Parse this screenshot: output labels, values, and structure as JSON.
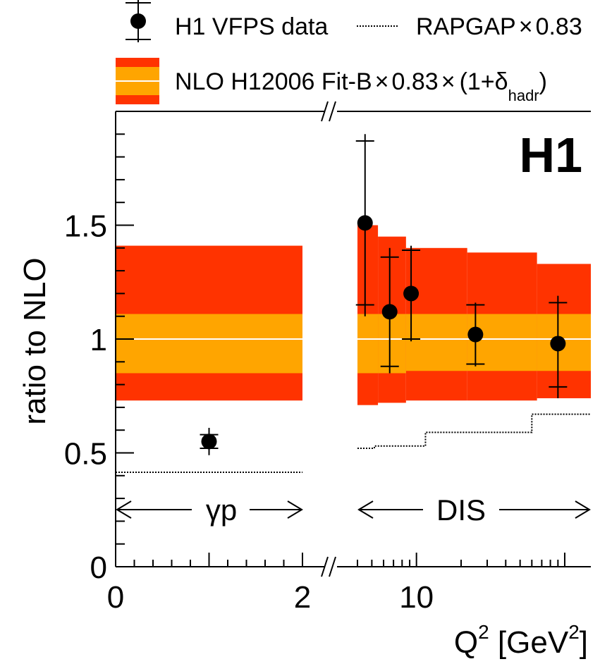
{
  "chart_data": {
    "type": "scatter",
    "experiment_label": "H1",
    "ylabel": "ratio to NLO",
    "xlabel": {
      "main": "Q",
      "sup": "2",
      "unit_open": " [GeV",
      "unit_sup": "2",
      "unit_close": "]"
    },
    "ylim": [
      0,
      2
    ],
    "y_ticks": [
      {
        "value": 0,
        "label": "0"
      },
      {
        "value": 0.5,
        "label": "0.5"
      },
      {
        "value": 1,
        "label": "1"
      },
      {
        "value": 1.5,
        "label": "1.5"
      }
    ],
    "gp_panel": {
      "xlim": [
        0,
        2
      ],
      "x_ticks": [
        {
          "value": 0,
          "label": "0"
        },
        {
          "value": 2,
          "label": "2"
        }
      ],
      "region_label": "γp",
      "band": {
        "x": [
          0,
          2
        ],
        "outer": [
          0.73,
          1.41
        ],
        "inner": [
          0.85,
          1.11
        ],
        "central": 1.0
      },
      "rapgap": [
        {
          "x": [
            0,
            2
          ],
          "y": 0.415
        }
      ],
      "points": [
        {
          "x": 1.0,
          "y": 0.55,
          "stat": [
            0.52,
            0.58
          ],
          "total": [
            0.49,
            0.61
          ]
        }
      ]
    },
    "dis_panel": {
      "xlim": [
        4,
        150
      ],
      "x_scale": "log",
      "x_ticks": [
        {
          "value": 10,
          "label": "10"
        }
      ],
      "region_label": "DIS",
      "bands": [
        {
          "x": [
            4,
            5.5
          ],
          "outer": [
            0.71,
            1.5
          ],
          "inner": [
            0.85,
            1.11
          ]
        },
        {
          "x": [
            5.5,
            8.5
          ],
          "outer": [
            0.72,
            1.45
          ],
          "inner": [
            0.85,
            1.11
          ]
        },
        {
          "x": [
            8.5,
            22
          ],
          "outer": [
            0.73,
            1.4
          ],
          "inner": [
            0.86,
            1.11
          ]
        },
        {
          "x": [
            22,
            65
          ],
          "outer": [
            0.73,
            1.38
          ],
          "inner": [
            0.86,
            1.11
          ]
        },
        {
          "x": [
            65,
            150
          ],
          "outer": [
            0.74,
            1.33
          ],
          "inner": [
            0.86,
            1.11
          ]
        }
      ],
      "central": 1.0,
      "rapgap": [
        {
          "x": [
            4,
            5.2
          ],
          "y": 0.52
        },
        {
          "x": [
            5.2,
            11.5
          ],
          "y": 0.53
        },
        {
          "x": [
            11.5,
            60
          ],
          "y": 0.59
        },
        {
          "x": [
            60,
            150
          ],
          "y": 0.67
        }
      ],
      "points": [
        {
          "x": 4.5,
          "y": 1.51,
          "stat": [
            1.15,
            1.87
          ],
          "total": [
            1.1,
            1.9
          ]
        },
        {
          "x": 6.6,
          "y": 1.12,
          "stat": [
            0.88,
            1.36
          ],
          "total": [
            0.85,
            1.4
          ]
        },
        {
          "x": 9.2,
          "y": 1.2,
          "stat": [
            1.0,
            1.39
          ],
          "total": [
            0.99,
            1.41
          ]
        },
        {
          "x": 25,
          "y": 1.02,
          "stat": [
            0.89,
            1.15
          ],
          "total": [
            0.88,
            1.16
          ]
        },
        {
          "x": 90,
          "y": 0.98,
          "stat": [
            0.79,
            1.16
          ],
          "total": [
            0.74,
            1.19
          ]
        }
      ]
    },
    "legend": {
      "placement": "top",
      "data_label": "H1 VFPS data",
      "rapgap_label": "RAPGAP",
      "rapgap_factor": "0.83",
      "nlo_label": "NLO H12006 Fit-B",
      "nlo_factor": "0.83",
      "nlo_delta_open": "(1+δ",
      "nlo_delta_sub": "hadr",
      "nlo_delta_close": ")"
    },
    "colors": {
      "outer_band": "#ff3300",
      "inner_band": "#ffa500",
      "central_line": "#ffffff",
      "marker": "#000000"
    }
  }
}
